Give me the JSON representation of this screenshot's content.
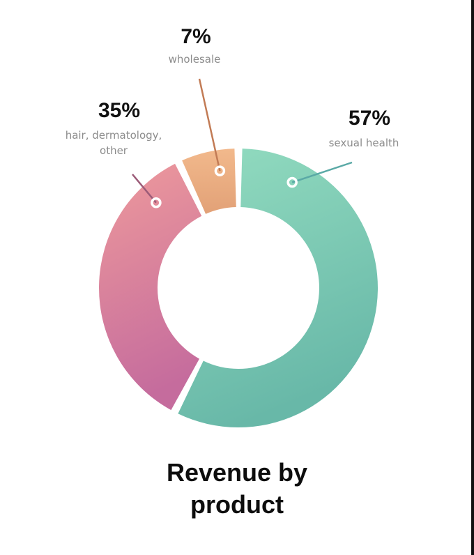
{
  "chart_data": {
    "type": "pie",
    "style": "donut",
    "title_lines": [
      "Revenue by",
      "product"
    ],
    "slices": [
      {
        "label": "sexual health",
        "value_label": "57%",
        "value": 57,
        "color_start": "#93dcc0",
        "color_end": "#68b8a8",
        "leader_color": "#5aa9a6"
      },
      {
        "label": "hair, dermatology, other",
        "label_lines": [
          "hair, dermatology,",
          "other"
        ],
        "value_label": "35%",
        "value": 35,
        "color_start": "#ee9a9c",
        "color_end": "#c56c9d",
        "leader_color": "#9c5b78"
      },
      {
        "label": "wholesale",
        "value_label": "7%",
        "value": 7,
        "color_start": "#f2b98c",
        "color_end": "#e2a177",
        "leader_color": "#c27b55"
      }
    ]
  }
}
